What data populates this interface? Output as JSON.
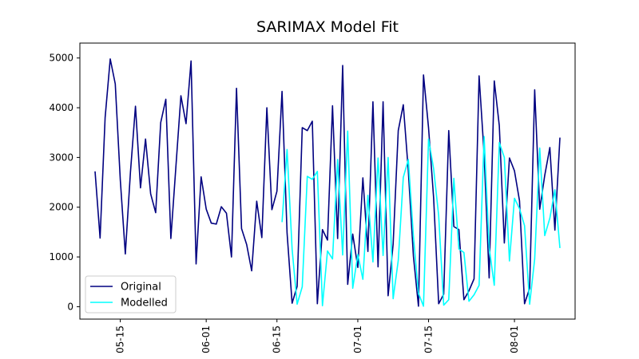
{
  "chart_data": {
    "type": "line",
    "title": "SARIMAX Model Fit",
    "xlabel": "",
    "ylabel": "",
    "xlim": [
      "2024-05-07",
      "2024-08-13"
    ],
    "ylim": [
      -250,
      5300
    ],
    "yticks": [
      0,
      1000,
      2000,
      3000,
      4000,
      5000
    ],
    "xticks": [
      "2024-05-15",
      "2024-06-01",
      "2024-06-15",
      "2024-07-01",
      "2024-07-15",
      "2024-08-01"
    ],
    "xtick_labels": [
      "05-15",
      "06-01",
      "06-15",
      "07-01",
      "07-15",
      "08-01"
    ],
    "legend_position": "lower left",
    "grid": false,
    "series": [
      {
        "name": "Original",
        "color": "#000080",
        "x": [
          "2024-05-10",
          "2024-05-11",
          "2024-05-12",
          "2024-05-13",
          "2024-05-14",
          "2024-05-15",
          "2024-05-16",
          "2024-05-17",
          "2024-05-18",
          "2024-05-19",
          "2024-05-20",
          "2024-05-21",
          "2024-05-22",
          "2024-05-23",
          "2024-05-24",
          "2024-05-25",
          "2024-05-26",
          "2024-05-27",
          "2024-05-28",
          "2024-05-29",
          "2024-05-30",
          "2024-05-31",
          "2024-06-01",
          "2024-06-02",
          "2024-06-03",
          "2024-06-04",
          "2024-06-05",
          "2024-06-06",
          "2024-06-07",
          "2024-06-08",
          "2024-06-09",
          "2024-06-10",
          "2024-06-11",
          "2024-06-12",
          "2024-06-13",
          "2024-06-14",
          "2024-06-15",
          "2024-06-16",
          "2024-06-17",
          "2024-06-18",
          "2024-06-19",
          "2024-06-20",
          "2024-06-21",
          "2024-06-22",
          "2024-06-23",
          "2024-06-24",
          "2024-06-25",
          "2024-06-26",
          "2024-06-27",
          "2024-06-28",
          "2024-06-29",
          "2024-06-30",
          "2024-07-01",
          "2024-07-02",
          "2024-07-03",
          "2024-07-04",
          "2024-07-05",
          "2024-07-06",
          "2024-07-07",
          "2024-07-08",
          "2024-07-09",
          "2024-07-10",
          "2024-07-11",
          "2024-07-12",
          "2024-07-13",
          "2024-07-14",
          "2024-07-15",
          "2024-07-16",
          "2024-07-17",
          "2024-07-18",
          "2024-07-19",
          "2024-07-20",
          "2024-07-21",
          "2024-07-22",
          "2024-07-23",
          "2024-07-24",
          "2024-07-25",
          "2024-07-26",
          "2024-07-27",
          "2024-07-28",
          "2024-07-29",
          "2024-07-30",
          "2024-07-31",
          "2024-08-01",
          "2024-08-02",
          "2024-08-03",
          "2024-08-04",
          "2024-08-05",
          "2024-08-06",
          "2024-08-07",
          "2024-08-08",
          "2024-08-09",
          "2024-08-10"
        ],
        "y": [
          2720,
          1380,
          3800,
          4980,
          4480,
          2550,
          1060,
          2700,
          4030,
          2390,
          3370,
          2270,
          1890,
          3700,
          4170,
          1370,
          2810,
          4240,
          3680,
          4940,
          860,
          2610,
          1960,
          1680,
          1660,
          2010,
          1880,
          1000,
          4390,
          1570,
          1250,
          720,
          2120,
          1390,
          4000,
          1950,
          2320,
          4330,
          1480,
          70,
          410,
          3600,
          3540,
          3730,
          60,
          1550,
          1340,
          4040,
          1370,
          4850,
          450,
          1460,
          790,
          2590,
          1110,
          4120,
          800,
          4120,
          220,
          1260,
          3540,
          4060,
          2730,
          1010,
          10,
          4660,
          3600,
          2180,
          60,
          250,
          3540,
          1610,
          1550,
          140,
          320,
          560,
          4640,
          3060,
          580,
          4540,
          3640,
          1280,
          2990,
          2730,
          2130,
          60,
          370,
          4360,
          1960,
          2640,
          3200,
          1540,
          3400
        ]
      },
      {
        "name": "Modelled",
        "color": "#00ffff",
        "x": [
          "2024-06-16",
          "2024-06-17",
          "2024-06-18",
          "2024-06-19",
          "2024-06-20",
          "2024-06-21",
          "2024-06-22",
          "2024-06-23",
          "2024-06-24",
          "2024-06-25",
          "2024-06-26",
          "2024-06-27",
          "2024-06-28",
          "2024-06-29",
          "2024-06-30",
          "2024-07-01",
          "2024-07-02",
          "2024-07-03",
          "2024-07-04",
          "2024-07-05",
          "2024-07-06",
          "2024-07-07",
          "2024-07-08",
          "2024-07-09",
          "2024-07-10",
          "2024-07-11",
          "2024-07-12",
          "2024-07-13",
          "2024-07-14",
          "2024-07-15",
          "2024-07-16",
          "2024-07-17",
          "2024-07-18",
          "2024-07-19",
          "2024-07-20",
          "2024-07-21",
          "2024-07-22",
          "2024-07-23",
          "2024-07-24",
          "2024-07-25",
          "2024-07-26",
          "2024-07-27",
          "2024-07-28",
          "2024-07-29",
          "2024-07-30",
          "2024-07-31",
          "2024-08-01",
          "2024-08-02",
          "2024-08-03",
          "2024-08-04",
          "2024-08-05",
          "2024-08-06",
          "2024-08-07",
          "2024-08-08",
          "2024-08-09",
          "2024-08-10"
        ],
        "y": [
          1700,
          3160,
          1160,
          50,
          400,
          2620,
          2560,
          2720,
          20,
          1120,
          960,
          2960,
          1040,
          3530,
          370,
          1050,
          550,
          2240,
          900,
          2990,
          1030,
          3000,
          160,
          930,
          2600,
          2960,
          1410,
          270,
          10,
          3370,
          2770,
          1830,
          30,
          140,
          2580,
          1160,
          1090,
          110,
          240,
          430,
          3420,
          1190,
          430,
          3300,
          3000,
          920,
          2180,
          1970,
          1630,
          50,
          960,
          3190,
          1430,
          1780,
          2350,
          1180
        ]
      }
    ]
  }
}
